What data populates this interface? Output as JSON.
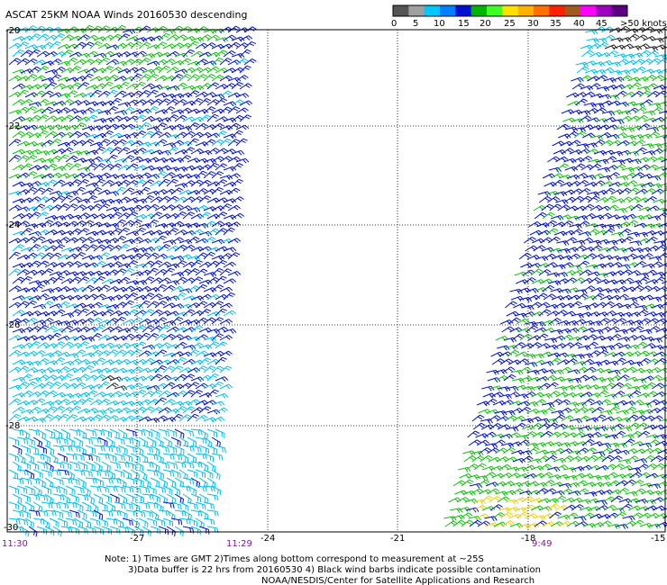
{
  "title": "ASCAT 25KM NOAA Winds 20160530 descending",
  "colorbar": {
    "colors": [
      "#555555",
      "#a0a0a0",
      "#00c8ff",
      "#0080ff",
      "#0010d0",
      "#00b400",
      "#40ff20",
      "#ffe000",
      "#ffb000",
      "#ff7000",
      "#ff2000",
      "#a05a20",
      "#ff00ff",
      "#a000c0",
      "#5a0080"
    ],
    "tick_labels": [
      "0",
      "5",
      "10",
      "15",
      "20",
      "25",
      "30",
      "35",
      "40",
      "45"
    ],
    "unit_label": ">50 knots"
  },
  "axes": {
    "lon_labels": [
      "-27",
      "-24",
      "-21",
      "-18",
      "-15"
    ],
    "lat_labels": [
      "-20",
      "-22",
      "-24",
      "-26",
      "-28",
      "-30"
    ]
  },
  "pass_times": [
    "11:30",
    "11:29",
    "9:49"
  ],
  "notes": {
    "line1": "Note: 1) Times are GMT 2)Times along bottom correspond to measurement at ~25S",
    "line2": "3)Data buffer is 22 hrs from 20160530 4) Black wind barbs indicate possible contamination",
    "line3": "NOAA/NESDIS/Center for Satellite Applications and Research"
  }
}
